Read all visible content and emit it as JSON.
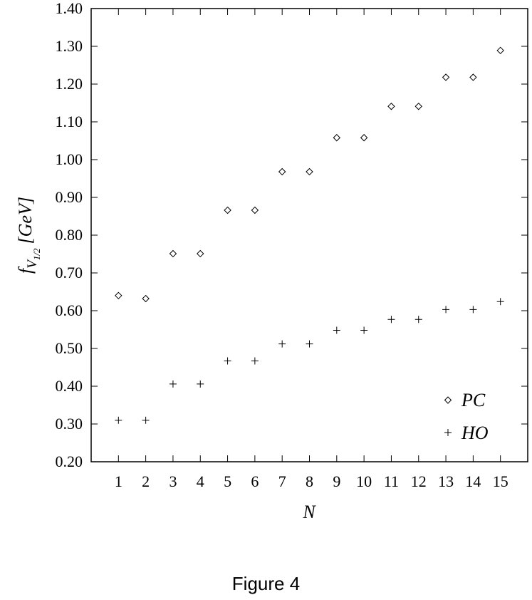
{
  "chart_data": {
    "type": "scatter",
    "xlabel": "N",
    "ylabel": {
      "main": "f",
      "sub": "V",
      "subsub": "1/2",
      "unit": "[GeV]"
    },
    "xticks": [
      "1",
      "2",
      "3",
      "4",
      "5",
      "6",
      "7",
      "8",
      "9",
      "10",
      "11",
      "12",
      "13",
      "14",
      "15"
    ],
    "yticks": [
      "0.20",
      "0.30",
      "0.40",
      "0.50",
      "0.60",
      "0.70",
      "0.80",
      "0.90",
      "1.00",
      "1.10",
      "1.20",
      "1.30",
      "1.40"
    ],
    "xlim": [
      0,
      16
    ],
    "ylim": [
      0.2,
      1.4
    ],
    "grid": false,
    "legend_position": "bottom-right",
    "series": [
      {
        "name": "PC",
        "marker": "diamond",
        "x": [
          1,
          2,
          3,
          4,
          5,
          6,
          7,
          8,
          9,
          10,
          11,
          12,
          13,
          14,
          15
        ],
        "y": [
          0.64,
          0.632,
          0.751,
          0.751,
          0.866,
          0.866,
          0.968,
          0.968,
          1.058,
          1.058,
          1.141,
          1.141,
          1.218,
          1.218,
          1.289
        ]
      },
      {
        "name": "HO",
        "marker": "plus",
        "x": [
          1,
          2,
          3,
          4,
          5,
          6,
          7,
          8,
          9,
          10,
          11,
          12,
          13,
          14,
          15
        ],
        "y": [
          0.31,
          0.31,
          0.406,
          0.406,
          0.467,
          0.467,
          0.512,
          0.512,
          0.548,
          0.548,
          0.577,
          0.577,
          0.603,
          0.603,
          0.624
        ]
      }
    ]
  },
  "caption": "Figure 4"
}
